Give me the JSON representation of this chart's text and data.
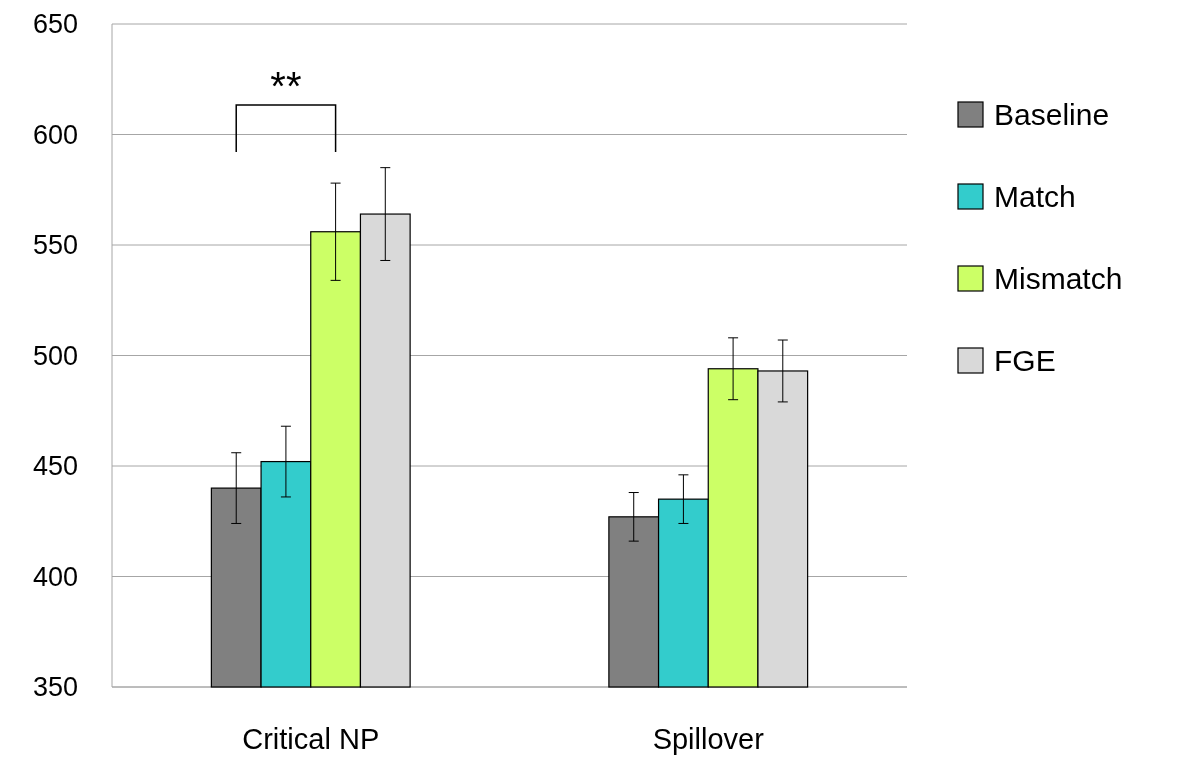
{
  "chart_data": {
    "type": "bar",
    "categories": [
      "Critical NP",
      "Spillover"
    ],
    "series": [
      {
        "name": "Baseline",
        "color": "#808080",
        "values": [
          440,
          427
        ],
        "errors": [
          16,
          11
        ]
      },
      {
        "name": "Match",
        "color": "#33cccc",
        "values": [
          452,
          435
        ],
        "errors": [
          16,
          11
        ]
      },
      {
        "name": "Mismatch",
        "color": "#ccff66",
        "values": [
          556,
          494
        ],
        "errors": [
          22,
          14
        ]
      },
      {
        "name": "FGE",
        "color": "#d9d9d9",
        "values": [
          564,
          493
        ],
        "errors": [
          21,
          14
        ]
      }
    ],
    "ylim": [
      350,
      650
    ],
    "yticks": [
      350,
      400,
      450,
      500,
      550,
      600,
      650
    ],
    "grid": "y",
    "legend": "right",
    "annotations": [
      "**"
    ]
  }
}
